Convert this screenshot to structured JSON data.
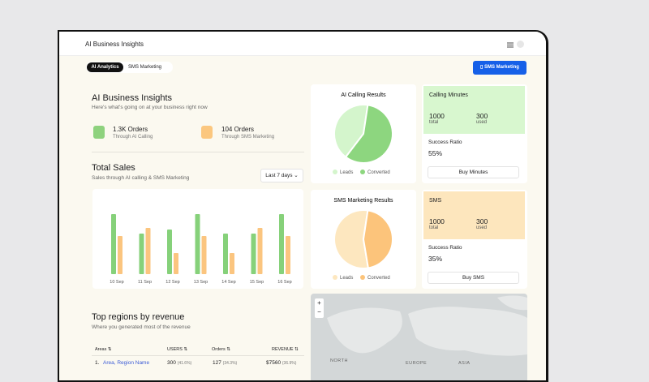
{
  "header": {
    "title": "AI Business Insights"
  },
  "tabs": [
    "AI Analytics",
    "SMS Marketing"
  ],
  "action_button": "SMS Marketing",
  "overview": {
    "title": "AI Business Insights",
    "subtitle": "Here's what's going on at your business right now",
    "stats": [
      {
        "value": "1.3K Orders",
        "label": "Through AI Calling"
      },
      {
        "value": "104 Orders",
        "label": "Through SMS Marketing"
      }
    ]
  },
  "sales": {
    "title": "Total Sales",
    "subtitle": "Sales through AI calling & SMS Marketing",
    "period": "Last 7 days",
    "chart": {
      "type": "bar",
      "categories": [
        "10 Sep",
        "11 Sep",
        "12 Sep",
        "13 Sep",
        "14 Sep",
        "15 Sep",
        "16 Sep"
      ],
      "series": [
        {
          "color": "#86d17a",
          "values": [
            74,
            50,
            55,
            74,
            50,
            50,
            74
          ]
        },
        {
          "color": "#fbc57f",
          "values": [
            47,
            57,
            26,
            47,
            26,
            57,
            47
          ]
        }
      ]
    }
  },
  "calling_results": {
    "title": "AI Calling Results",
    "chart": {
      "type": "pie",
      "categories": [
        "Leads",
        "Converted"
      ],
      "values": [
        42,
        58
      ],
      "colors": [
        "#d4f5cc",
        "#8dd67f"
      ]
    }
  },
  "sms_results": {
    "title": "SMS Marketing Results",
    "chart": {
      "type": "pie",
      "categories": [
        "Leads",
        "Converted"
      ],
      "values": [
        55,
        45
      ],
      "colors": [
        "#fde7bf",
        "#fcc47b"
      ]
    }
  },
  "calling_minutes": {
    "title": "Calling Minutes",
    "total": "1000",
    "total_label": "total",
    "used": "300",
    "used_label": "used",
    "ratio_label": "Success Ratio",
    "ratio": "55%",
    "button": "Buy Minutes"
  },
  "sms": {
    "title": "SMS",
    "total": "1000",
    "total_label": "total",
    "used": "300",
    "used_label": "used",
    "ratio_label": "Success Ratio",
    "ratio": "35%",
    "button": "Buy SMS"
  },
  "regions": {
    "title": "Top regions by revenue",
    "subtitle": "Where you generated most of the revenue",
    "columns": [
      "Areas",
      "USERS",
      "Orders",
      "REVENUE"
    ],
    "rows": [
      {
        "rank": "1.",
        "area": "Area, Region Name",
        "users": "300",
        "users_share": "(41.6%)",
        "orders": "127",
        "orders_share": "(34.3%)",
        "revenue": "$7560",
        "revenue_share": "(36.9%)"
      }
    ]
  },
  "map": {
    "zoom": [
      "+",
      "−"
    ],
    "labels": [
      "NORTH",
      "EUROPE",
      "ASIA"
    ]
  }
}
